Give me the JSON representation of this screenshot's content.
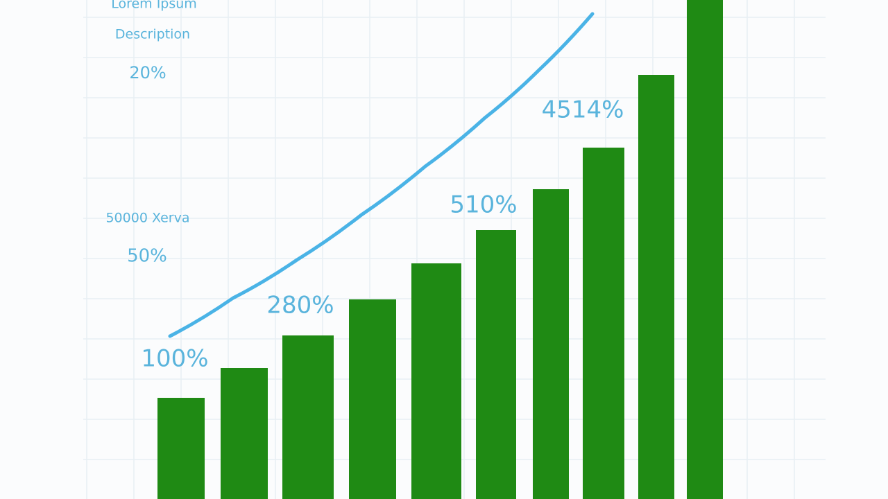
{
  "chart_data": {
    "type": "bar",
    "title": "Lorem Ipsum",
    "subtitle": "Description",
    "annotations": [
      "20%",
      "50000 Xerva",
      "50%",
      "100%",
      "280%",
      "510%",
      "4514%"
    ],
    "series": [
      {
        "type": "bar",
        "color": "#1f8a14",
        "values": [
          146,
          189,
          236,
          288,
          340,
          388,
          447,
          507,
          612,
          720
        ]
      },
      {
        "type": "line",
        "color": "#4ab3e6",
        "values": [
          235,
          290,
          345,
          410,
          480,
          550,
          620,
          700,
          null,
          null
        ]
      }
    ],
    "ylim": [
      0,
      720
    ],
    "grid": true,
    "text_color": "#5ab4dc"
  }
}
